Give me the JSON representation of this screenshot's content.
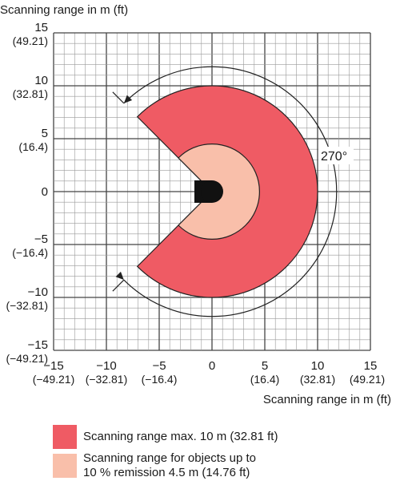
{
  "y_axis_title": "Scanning range in m (ft)",
  "x_axis_title": "Scanning range in m (ft)",
  "y_ticks": [
    {
      "value": 15,
      "m": "15",
      "ft": "(49.21)"
    },
    {
      "value": 10,
      "m": "10",
      "ft": "(32.81)"
    },
    {
      "value": 5,
      "m": "5",
      "ft": "(16.4)"
    },
    {
      "value": 0,
      "m": "0",
      "ft": ""
    },
    {
      "value": -5,
      "m": "−5",
      "ft": "(−16.4)"
    },
    {
      "value": -10,
      "m": "−10",
      "ft": "(−32.81)"
    },
    {
      "value": -15,
      "m": "−15",
      "ft": "(−49.21)"
    }
  ],
  "x_ticks": [
    {
      "value": -15,
      "m": "−15",
      "ft": "(−49.21)"
    },
    {
      "value": -10,
      "m": "−10",
      "ft": "(−32.81)"
    },
    {
      "value": -5,
      "m": "−5",
      "ft": "(−16.4)"
    },
    {
      "value": 0,
      "m": "0",
      "ft": ""
    },
    {
      "value": 5,
      "m": "5",
      "ft": "(16.4)"
    },
    {
      "value": 10,
      "m": "10",
      "ft": "(32.81)"
    },
    {
      "value": 15,
      "m": "15",
      "ft": "(49.21)"
    }
  ],
  "angle_label": "270°",
  "scan": {
    "outer_radius_m": 10,
    "inner_radius_m": 4.5,
    "angle_deg": 270,
    "axis_range_m": [
      -15,
      15
    ],
    "minor_grid_step_m": 1
  },
  "colors": {
    "max_range": "#ef5b64",
    "low_remission": "#f9bfaa",
    "grid": "#9a9a9a",
    "axis": "#444444",
    "sensor": "#111111"
  },
  "legend": [
    {
      "line1": "Scanning range max. 10 m (32.81 ft)",
      "line2": "",
      "color": "#ef5b64"
    },
    {
      "line1": "Scanning range for objects up to",
      "line2": "10 % remission 4.5 m (14.76 ft)",
      "color": "#f9bfaa"
    }
  ]
}
